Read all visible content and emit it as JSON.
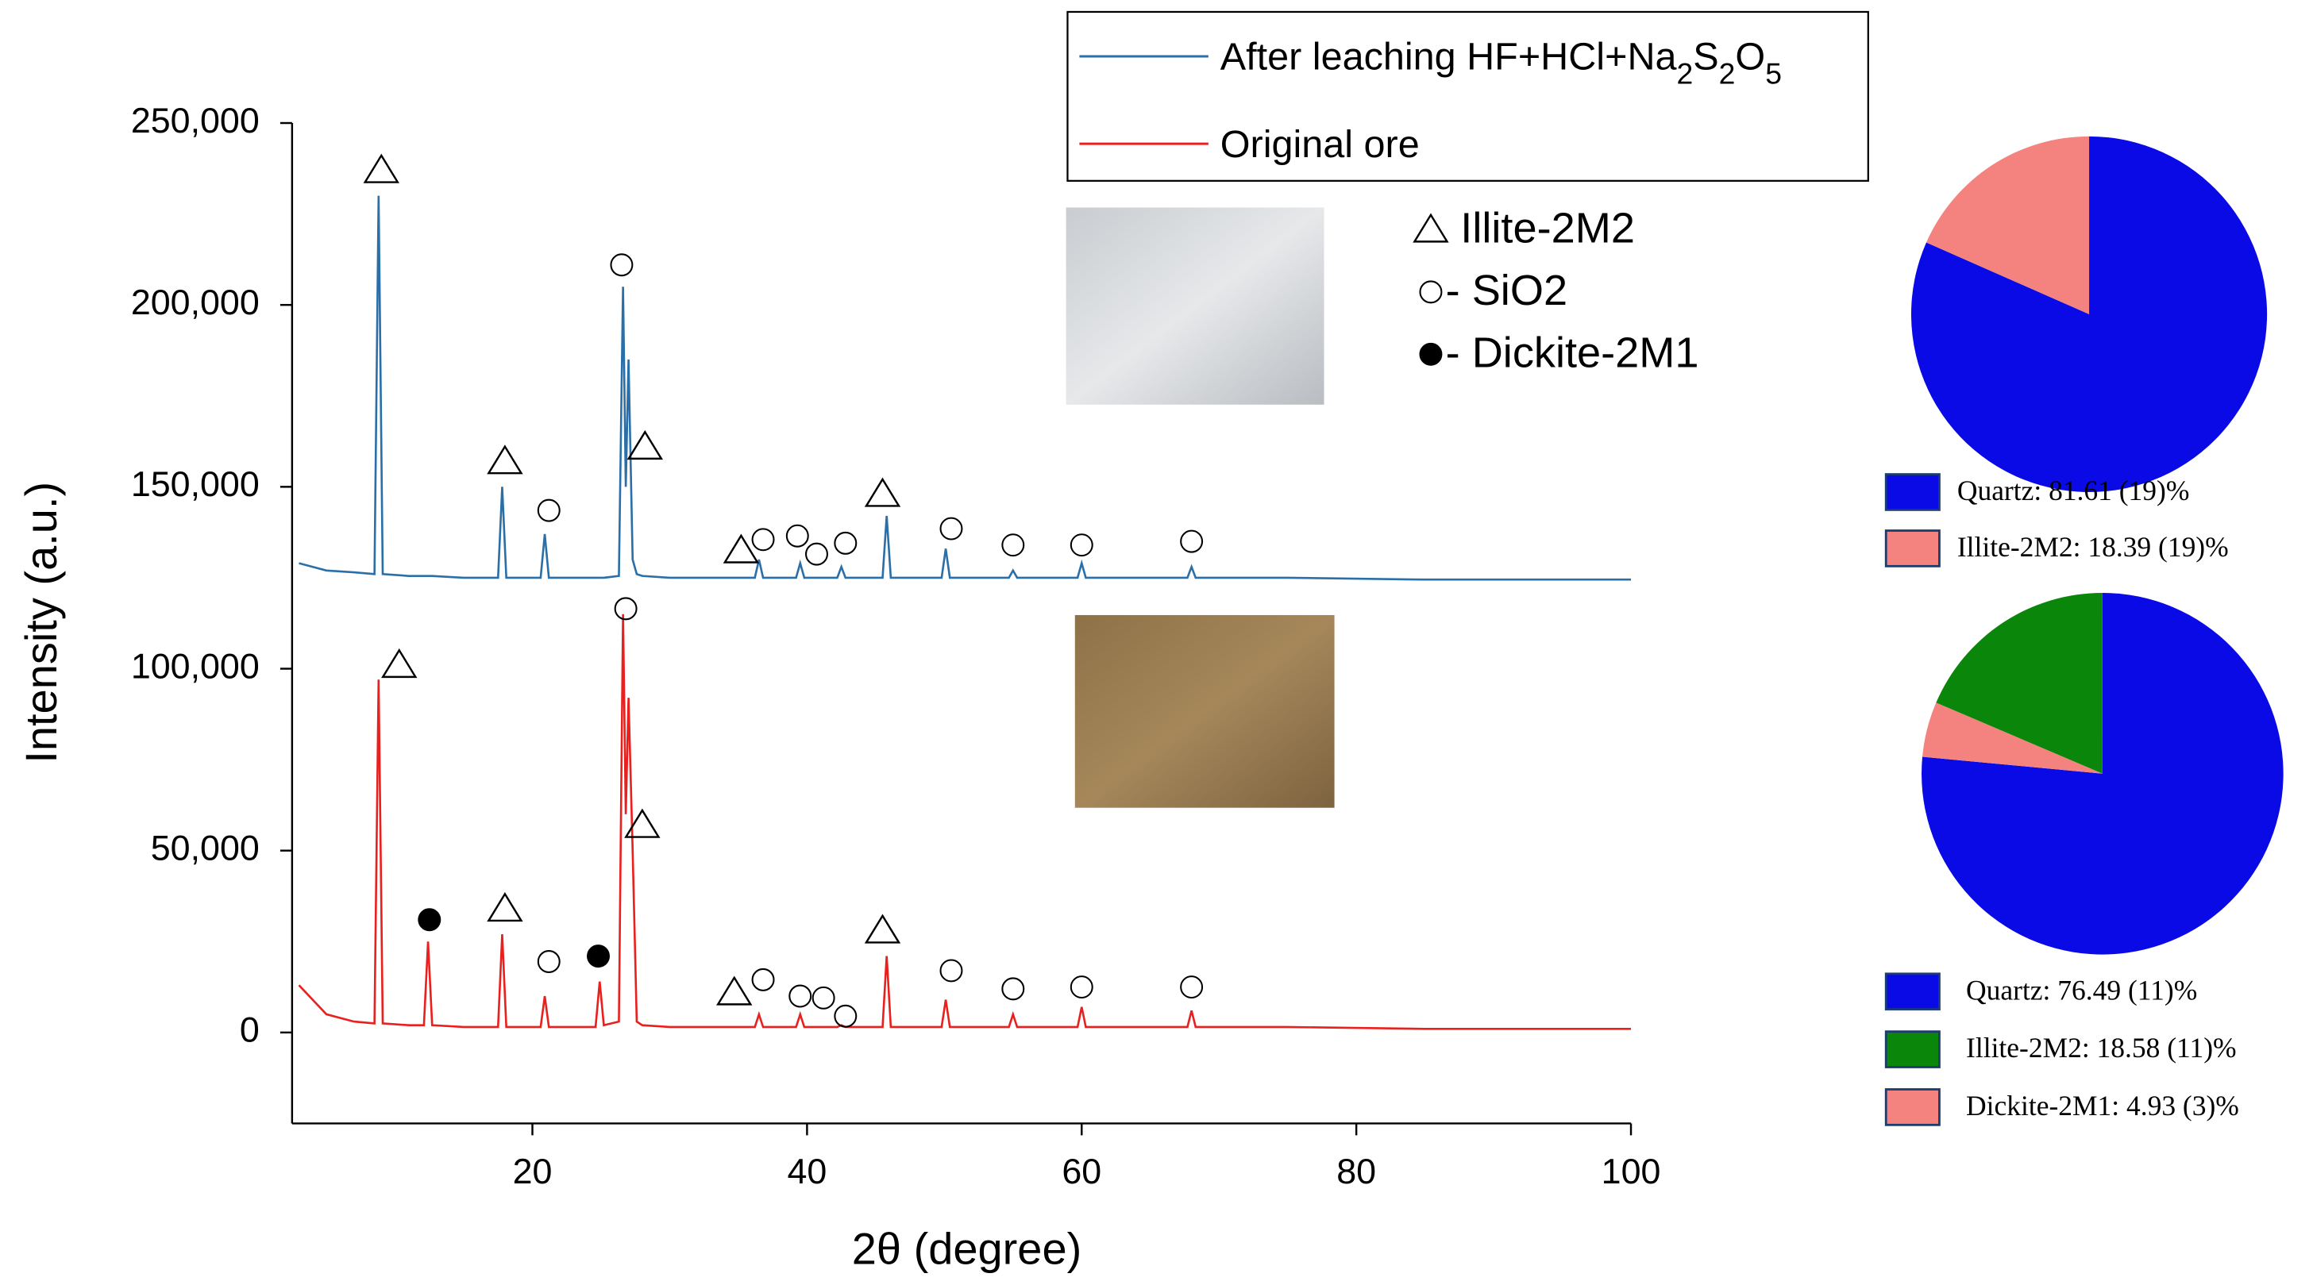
{
  "chart_data": [
    {
      "type": "line",
      "xlabel": "2θ (degree)",
      "ylabel": "Intensity (a.u.)",
      "xlim": [
        2.5,
        100
      ],
      "ylim": [
        -25000,
        250000
      ],
      "xticks": [
        20,
        40,
        60,
        80,
        100
      ],
      "yticks": [
        {
          "value": 0,
          "label": "0"
        },
        {
          "value": 50000,
          "label": "50,000"
        },
        {
          "value": 100000,
          "label": "100,000"
        },
        {
          "value": 150000,
          "label": "150,000"
        },
        {
          "value": 200000,
          "label": "200,000"
        },
        {
          "value": 250000,
          "label": "250,000"
        }
      ],
      "x": [
        3,
        5,
        7,
        8.5,
        8.8,
        9.1,
        11,
        12.1,
        12.4,
        12.7,
        15,
        17.5,
        17.8,
        18.1,
        20.6,
        20.9,
        21.2,
        24.6,
        24.9,
        25.2,
        26.3,
        26.6,
        26.8,
        27.0,
        27.3,
        27.6,
        28,
        30,
        35,
        36.2,
        36.5,
        36.8,
        39.2,
        39.5,
        39.8,
        42.2,
        42.5,
        42.8,
        45.5,
        45.8,
        46.1,
        49.8,
        50.1,
        50.4,
        54.7,
        55,
        55.3,
        59.7,
        60,
        60.3,
        67.7,
        68,
        68.3,
        75,
        85,
        100
      ],
      "series": [
        {
          "name": "After leaching HF+HCl+Na2S2O5",
          "color": "#2b6fa8",
          "values": [
            129000,
            127000,
            126500,
            126000,
            230000,
            126000,
            125500,
            125500,
            125500,
            125500,
            125000,
            125000,
            150000,
            125000,
            125000,
            137000,
            125000,
            125000,
            125000,
            125000,
            125500,
            205000,
            150000,
            185000,
            130000,
            126000,
            125500,
            125000,
            125000,
            125000,
            130000,
            125000,
            125000,
            129000,
            125000,
            125000,
            128000,
            125000,
            125000,
            142000,
            125000,
            125000,
            133000,
            125000,
            125000,
            127000,
            125000,
            125000,
            129000,
            125000,
            125000,
            128000,
            125000,
            125000,
            124500,
            124500
          ]
        },
        {
          "name": "Original ore",
          "color": "#e8201e",
          "values": [
            13000,
            5000,
            3000,
            2500,
            97000,
            2500,
            2000,
            2000,
            25000,
            2000,
            1500,
            1500,
            27000,
            1500,
            1500,
            10000,
            1500,
            1500,
            14000,
            2000,
            3000,
            115000,
            60000,
            92000,
            50000,
            3000,
            2000,
            1500,
            1500,
            1500,
            5000,
            1500,
            1500,
            5000,
            1500,
            1500,
            2000,
            1500,
            1500,
            21000,
            1500,
            1500,
            9000,
            1500,
            1500,
            5000,
            1500,
            1500,
            7000,
            1500,
            1500,
            6000,
            1500,
            1500,
            1000,
            1000
          ]
        }
      ],
      "phase_legend": [
        {
          "symbol": "triangle",
          "label": "Illite-2M2"
        },
        {
          "symbol": "circle",
          "label": "- SiO2"
        },
        {
          "symbol": "dot",
          "label": "- Dickite-2M1"
        }
      ],
      "markers": [
        {
          "symbol": "triangle",
          "x": 9.0,
          "y": 237000
        },
        {
          "symbol": "triangle",
          "x": 18,
          "y": 157000
        },
        {
          "symbol": "circle",
          "x": 21.2,
          "y": 143500
        },
        {
          "symbol": "circle",
          "x": 26.5,
          "y": 211000
        },
        {
          "symbol": "triangle",
          "x": 28.2,
          "y": 161000
        },
        {
          "symbol": "triangle",
          "x": 35.2,
          "y": 132500
        },
        {
          "symbol": "circle",
          "x": 36.8,
          "y": 135500
        },
        {
          "symbol": "circle",
          "x": 39.3,
          "y": 136500
        },
        {
          "symbol": "circle",
          "x": 40.7,
          "y": 131500
        },
        {
          "symbol": "circle",
          "x": 42.8,
          "y": 134500
        },
        {
          "symbol": "triangle",
          "x": 45.5,
          "y": 148000
        },
        {
          "symbol": "circle",
          "x": 50.5,
          "y": 138500
        },
        {
          "symbol": "circle",
          "x": 55,
          "y": 134000
        },
        {
          "symbol": "circle",
          "x": 60,
          "y": 134000
        },
        {
          "symbol": "circle",
          "x": 68,
          "y": 135000
        },
        {
          "symbol": "triangle",
          "x": 10.3,
          "y": 101000
        },
        {
          "symbol": "dot",
          "x": 12.5,
          "y": 31000
        },
        {
          "symbol": "triangle",
          "x": 18,
          "y": 34000
        },
        {
          "symbol": "circle",
          "x": 21.2,
          "y": 19500
        },
        {
          "symbol": "dot",
          "x": 24.8,
          "y": 21000
        },
        {
          "symbol": "circle",
          "x": 26.8,
          "y": 116500
        },
        {
          "symbol": "triangle",
          "x": 28,
          "y": 57000
        },
        {
          "symbol": "triangle",
          "x": 34.7,
          "y": 11000
        },
        {
          "symbol": "circle",
          "x": 36.8,
          "y": 14500
        },
        {
          "symbol": "circle",
          "x": 39.5,
          "y": 10000
        },
        {
          "symbol": "circle",
          "x": 41.2,
          "y": 9500
        },
        {
          "symbol": "circle",
          "x": 42.8,
          "y": 4500
        },
        {
          "symbol": "triangle",
          "x": 45.5,
          "y": 28000
        },
        {
          "symbol": "circle",
          "x": 50.5,
          "y": 17000
        },
        {
          "symbol": "circle",
          "x": 55,
          "y": 12000
        },
        {
          "symbol": "circle",
          "x": 60,
          "y": 12500
        },
        {
          "symbol": "circle",
          "x": 68,
          "y": 12500
        }
      ]
    },
    {
      "type": "pie",
      "categories": [
        "Quartz: 81.61 (19)%",
        "Illite-2M2: 18.39 (19)%"
      ],
      "values": [
        81.61,
        18.39
      ],
      "colors": [
        "#0a0ae6",
        "#f4837f"
      ]
    },
    {
      "type": "pie",
      "categories": [
        "Quartz: 76.49 (11)%",
        "Illite-2M2: 18.58 (11)%",
        "Dickite-2M1: 4.93 (3)%"
      ],
      "values": [
        76.49,
        18.58,
        4.93
      ],
      "colors": [
        "#0a0ae6",
        "#0a870a",
        "#f4837f"
      ]
    }
  ]
}
